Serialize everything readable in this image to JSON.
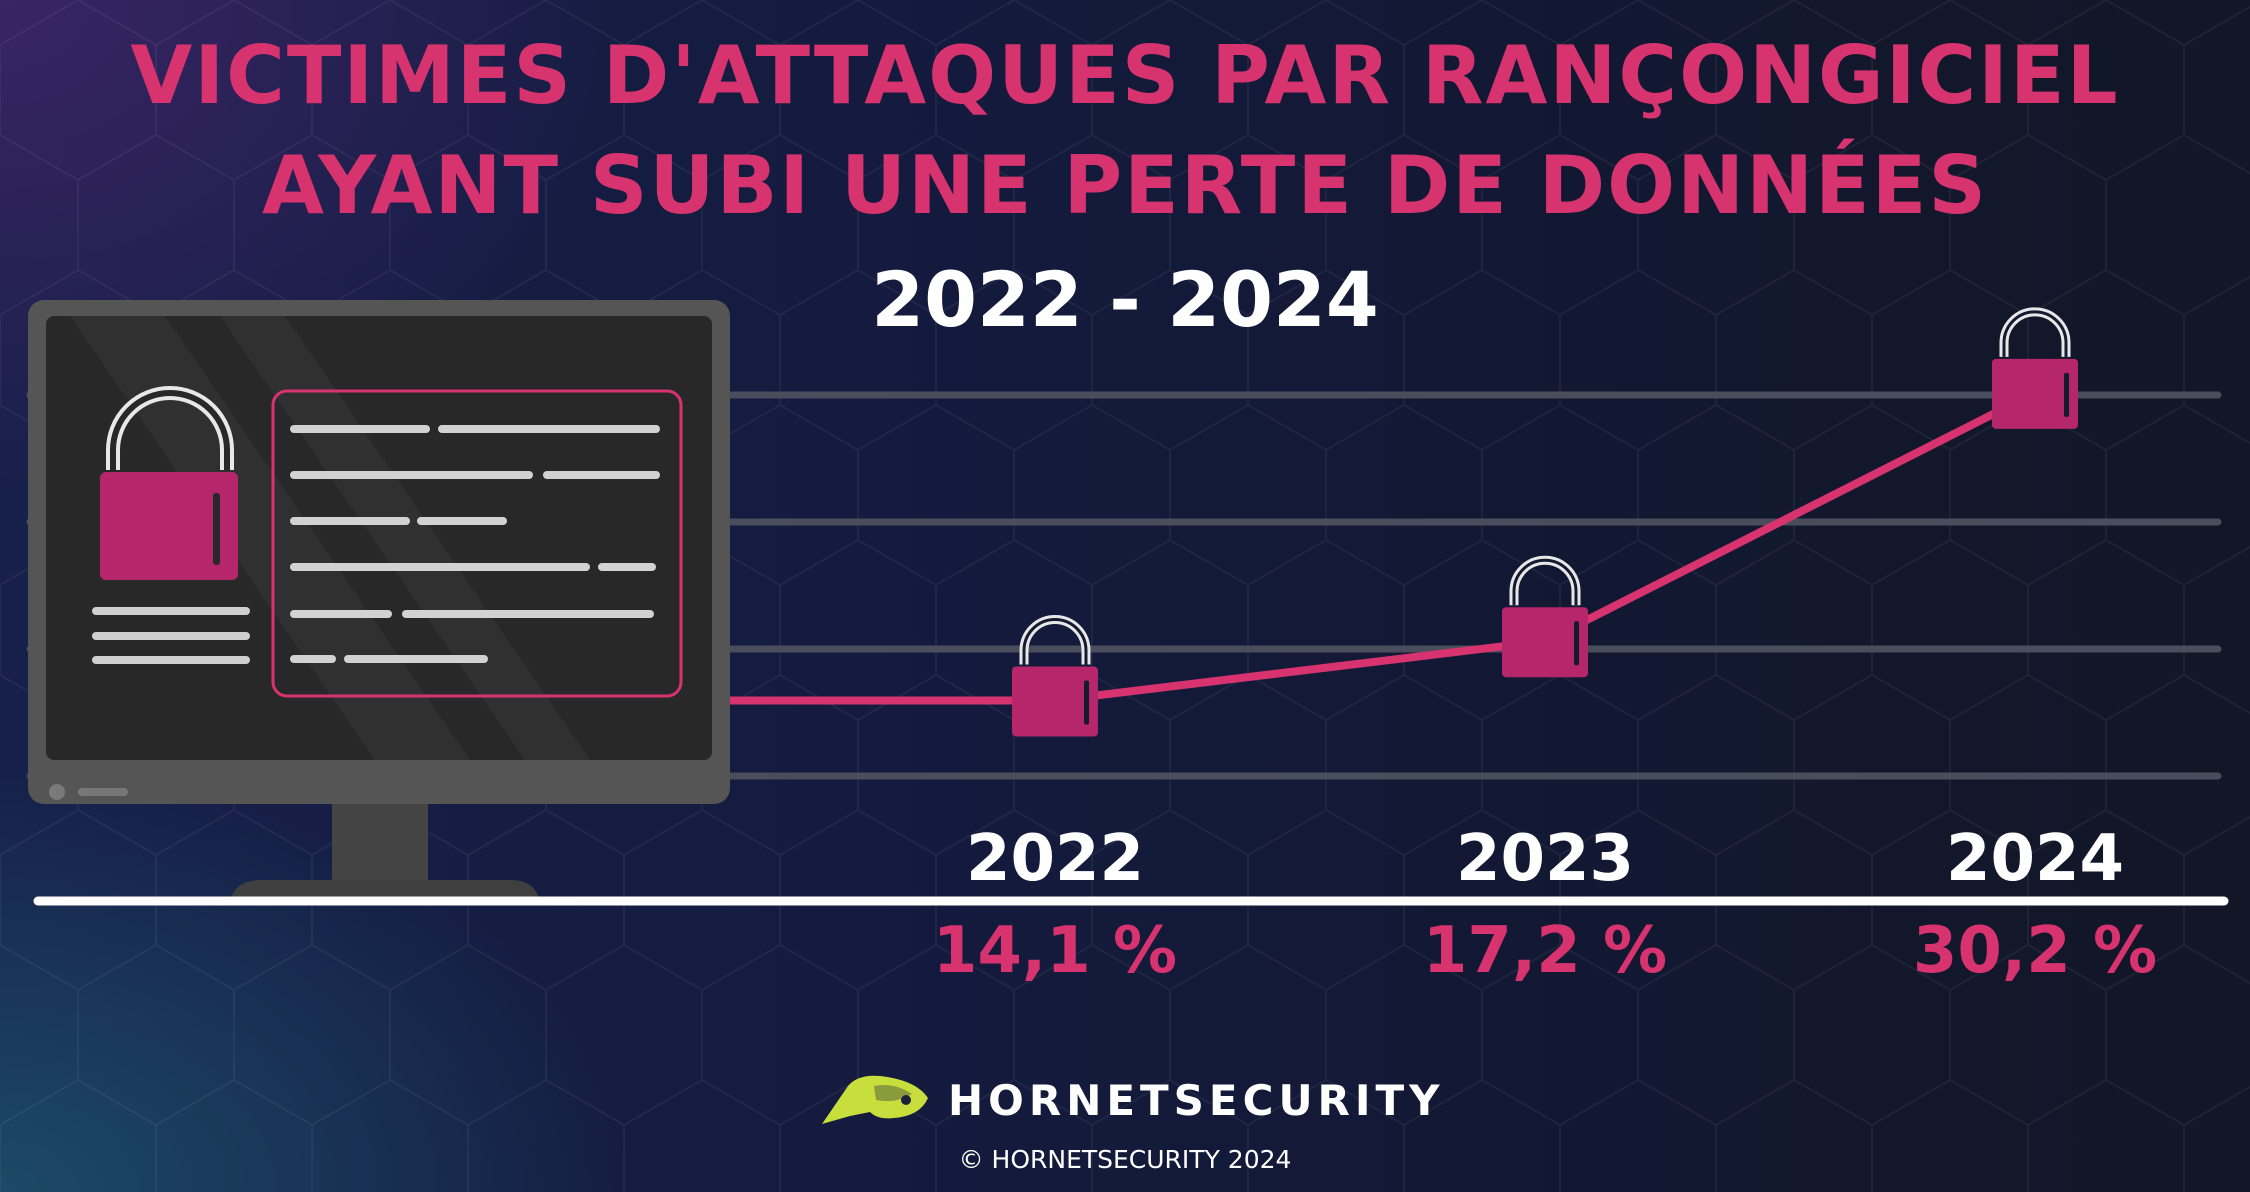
{
  "title_line1": "VICTIMES D'ATTAQUES PAR RANÇONGICIEL",
  "title_line2": "AYANT SUBI UNE PERTE DE DONNÉES",
  "subtitle": "2022 - 2024",
  "brand": "HORNETSECURITY",
  "copyright": "© HORNETSECURITY 2024",
  "colors": {
    "accent": "#d6336f",
    "lock": "#b5266a",
    "text": "#ffffff",
    "gridline": "#4a4d5c",
    "monitor": "#555555",
    "logo": "#c7de3c"
  },
  "chart_data": {
    "type": "line",
    "title": "VICTIMES D'ATTAQUES PAR RANÇONGICIEL AYANT SUBI UNE PERTE DE DONNÉES",
    "subtitle": "2022 - 2024",
    "categories": [
      "2022",
      "2023",
      "2024"
    ],
    "values": [
      14.1,
      17.2,
      30.2
    ],
    "value_labels": [
      "14,1 %",
      "17,2 %",
      "30,2 %"
    ],
    "unit": "%",
    "ylim": [
      8,
      36
    ],
    "grid": true,
    "marker": "padlock-icon"
  }
}
